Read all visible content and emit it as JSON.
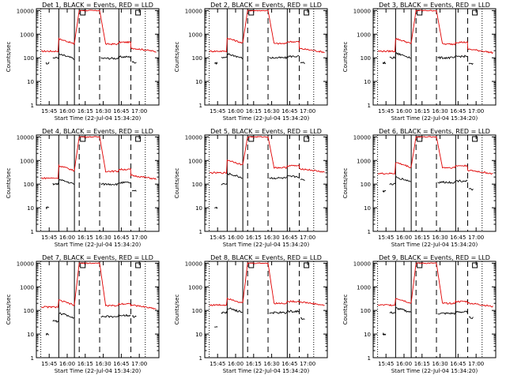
{
  "chart_data": {
    "type": "line",
    "y_scale": "log",
    "ylim": [
      1,
      12000
    ],
    "yticks": [
      1,
      10,
      100,
      1000,
      10000
    ],
    "ylabel": "Counts/sec",
    "xlabel": "Start Time (22-Jul-04 15:34:20)",
    "xticks": [
      "15:45",
      "16:00",
      "16:15",
      "16:30",
      "16:45",
      "17:00"
    ],
    "solid_lines_at": [
      "15:53",
      "16:06",
      "16:43"
    ],
    "dashed_lines_at": [
      "16:10",
      "16:27",
      "16:53"
    ],
    "dotted_lines_at": [
      "15:38",
      "17:05"
    ],
    "series_colors": {
      "events": "#000000",
      "lld": "#e00000"
    },
    "panels": [
      {
        "title": "Det  1, BLACK = Events, RED = LLD",
        "events": {
          "pre": 100,
          "seg1": 100,
          "seg3": 95,
          "post": 65,
          "first": 60
        },
        "lld": {
          "pre": 190,
          "seg1": 420,
          "peak": 10000,
          "seg3": 380,
          "post": 200
        }
      },
      {
        "title": "Det  2, BLACK = Events, RED = LLD",
        "events": {
          "pre": 100,
          "seg1": 105,
          "seg3": 100,
          "post": 60,
          "first": 60
        },
        "lld": {
          "pre": 190,
          "seg1": 450,
          "peak": 10000,
          "seg3": 400,
          "post": 190
        }
      },
      {
        "title": "Det  3, BLACK = Events, RED = LLD",
        "events": {
          "pre": 100,
          "seg1": 110,
          "seg3": 100,
          "post": 55,
          "first": 60
        },
        "lld": {
          "pre": 190,
          "seg1": 430,
          "peak": 10000,
          "seg3": 380,
          "post": 180
        }
      },
      {
        "title": "Det  4, BLACK = Events, RED = LLD",
        "events": {
          "pre": 100,
          "seg1": 110,
          "seg3": 100,
          "post": 50,
          "first": 10
        },
        "lld": {
          "pre": 180,
          "seg1": 400,
          "peak": 10000,
          "seg3": 350,
          "post": 180
        }
      },
      {
        "title": "Det  5, BLACK = Events, RED = LLD",
        "events": {
          "pre": 100,
          "seg1": 200,
          "seg3": 180,
          "post": 150,
          "first": 10
        },
        "lld": {
          "pre": 300,
          "seg1": 700,
          "peak": 10000,
          "seg3": 500,
          "post": 350
        }
      },
      {
        "title": "Det  6, BLACK = Events, RED = LLD",
        "events": {
          "pre": 100,
          "seg1": 140,
          "seg3": 120,
          "post": 60,
          "first": 50
        },
        "lld": {
          "pre": 280,
          "seg1": 550,
          "peak": 10000,
          "seg3": 500,
          "post": 300
        }
      },
      {
        "title": "Det  7, BLACK = Events, RED = LLD",
        "events": {
          "pre": 35,
          "seg1": 55,
          "seg3": 55,
          "post": 55,
          "first": 10
        },
        "lld": {
          "pre": 140,
          "seg1": 180,
          "peak": 10000,
          "seg3": 160,
          "post": 130
        }
      },
      {
        "title": "Det  8, BLACK = Events, RED = LLD",
        "events": {
          "pre": 80,
          "seg1": 90,
          "seg3": 80,
          "post": 45,
          "first": 20
        },
        "lld": {
          "pre": 170,
          "seg1": 220,
          "peak": 10000,
          "seg3": 200,
          "post": 180
        }
      },
      {
        "title": "Det  9, BLACK = Events, RED = LLD",
        "events": {
          "pre": 80,
          "seg1": 90,
          "seg3": 75,
          "post": 50,
          "first": 10
        },
        "lld": {
          "pre": 170,
          "seg1": 220,
          "peak": 10000,
          "seg3": 200,
          "post": 160
        }
      }
    ]
  }
}
